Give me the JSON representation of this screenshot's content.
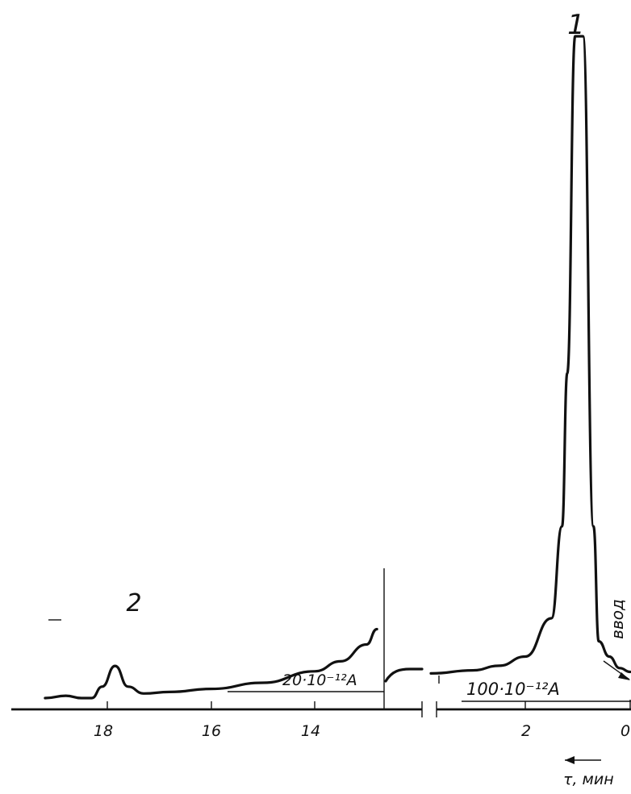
{
  "chart_data": {
    "type": "line",
    "title": "",
    "xlabel": "τ, мин",
    "ylabel": "",
    "x_direction": "right-to-left",
    "axis_break": true,
    "tick_labels": [
      "18",
      "16",
      "14",
      "2",
      "0"
    ],
    "peak_labels": [
      "1",
      "2"
    ],
    "annotations": {
      "injection": "ввод",
      "scale_left": "20·10⁻¹²A",
      "scale_right": "100·10⁻¹²A"
    },
    "series": [
      {
        "segment": "left (20·10⁻¹²A)",
        "x": [
          19.2,
          18.8,
          18.5,
          18.3,
          18.1,
          17.85,
          17.6,
          17.3,
          16.8,
          16.0,
          15.0,
          14.0,
          13.5,
          13.0,
          12.8
        ],
        "y": [
          0.0,
          0.03,
          0.0,
          0.0,
          0.15,
          0.42,
          0.15,
          0.06,
          0.08,
          0.12,
          0.2,
          0.35,
          0.48,
          0.7,
          0.9
        ]
      },
      {
        "segment": "right (100·10⁻¹²A)",
        "x": [
          3.8,
          3.0,
          2.5,
          2.0,
          1.5,
          1.3,
          1.2,
          1.05,
          0.9,
          0.7,
          0.6,
          0.4,
          0.2,
          0.0
        ],
        "y": [
          0.08,
          0.12,
          0.18,
          0.3,
          0.8,
          2.0,
          4.0,
          8.4,
          8.4,
          2.0,
          0.5,
          0.3,
          0.15,
          0.1
        ]
      }
    ]
  }
}
